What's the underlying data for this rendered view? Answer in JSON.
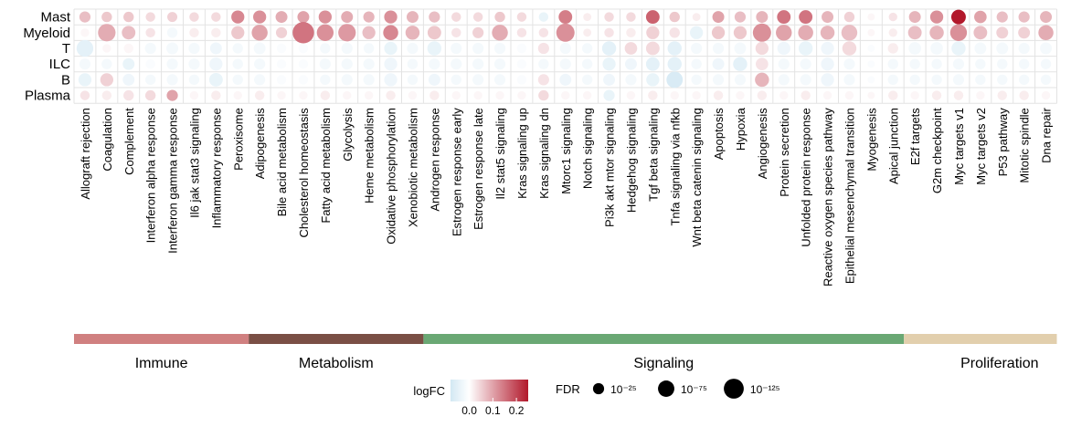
{
  "chart_data": {
    "type": "scatter",
    "subtype": "dot-plot",
    "title": "",
    "xlabel": "",
    "ylabel": "",
    "rows": [
      "Mast",
      "Myeloid",
      "T",
      "ILC",
      "B",
      "Plasma"
    ],
    "columns": [
      "Allograft rejection",
      "Coagulation",
      "Complement",
      "Interferon alpha response",
      "Interferon gamma response",
      "Il6 jak stat3 signaling",
      "Inflammatory response",
      "Peroxisome",
      "Adipogenesis",
      "Bile acid metabolism",
      "Cholesterol homeostasis",
      "Fatty acid metabolism",
      "Glycolysis",
      "Heme metabolism",
      "Oxidative phosphorylation",
      "Xenobiotic metabolism",
      "Androgen response",
      "Estrogen response early",
      "Estrogen response late",
      "Il2 stat5 signaling",
      "Kras signaling up",
      "Kras signaling dn",
      "Mtorc1 signaling",
      "Notch signaling",
      "Pi3k akt mtor signaling",
      "Hedgehog signaling",
      "Tgf beta signaling",
      "Tnfa signaling via nfkb",
      "Wnt beta catenin signaling",
      "Apoptosis",
      "Hypoxia",
      "Angiogenesis",
      "Protein secretion",
      "Unfolded protein response",
      "Reactive oxygen species pathway",
      "Epithelial mesenchymal transition",
      "Myogenesis",
      "Apical junction",
      "E2f targets",
      "G2m checkpoint",
      "Myc targets v1",
      "Myc targets v2",
      "P53 pathway",
      "Mitotic spindle",
      "Dna repair"
    ],
    "categories": [
      {
        "name": "Immune",
        "start": 0,
        "end": 7,
        "color": "#d08080"
      },
      {
        "name": "Metabolism",
        "start": 8,
        "end": 15,
        "color": "#7a4f45"
      },
      {
        "name": "Signaling",
        "start": 16,
        "end": 37,
        "color": "#6aa874"
      },
      {
        "name": "Proliferation",
        "start": 38,
        "end": 44,
        "color": "#e2cfad"
      }
    ],
    "logfc": [
      [
        0.07,
        0.06,
        0.06,
        0.04,
        0.05,
        0.04,
        0.04,
        0.13,
        0.12,
        0.09,
        0.1,
        0.12,
        0.09,
        0.08,
        0.12,
        0.08,
        0.07,
        0.04,
        0.04,
        0.06,
        0.04,
        -0.04,
        0.14,
        0.02,
        0.04,
        0.04,
        0.17,
        0.06,
        0.02,
        0.1,
        0.07,
        0.08,
        0.15,
        0.15,
        0.08,
        0.05,
        0.01,
        0.03,
        0.08,
        0.12,
        0.25,
        0.1,
        0.07,
        0.07,
        0.08
      ],
      [
        0.01,
        0.09,
        0.07,
        0.03,
        -0.02,
        0.02,
        0.02,
        0.06,
        0.1,
        0.05,
        0.15,
        0.12,
        0.11,
        0.07,
        0.13,
        0.08,
        0.06,
        0.03,
        0.05,
        0.09,
        0.03,
        0.03,
        0.12,
        0.02,
        0.03,
        0.02,
        0.05,
        0.03,
        -0.04,
        0.06,
        0.06,
        0.12,
        0.1,
        0.09,
        0.08,
        0.07,
        0.01,
        0.02,
        0.07,
        0.08,
        0.12,
        0.07,
        0.05,
        0.05,
        0.09
      ],
      [
        -0.05,
        0.01,
        0.01,
        -0.02,
        -0.02,
        -0.02,
        -0.03,
        -0.02,
        -0.02,
        -0.01,
        -0.01,
        -0.02,
        -0.02,
        -0.02,
        -0.04,
        -0.02,
        -0.04,
        -0.02,
        -0.02,
        -0.02,
        -0.01,
        0.03,
        -0.02,
        -0.02,
        -0.05,
        0.04,
        0.04,
        -0.05,
        -0.02,
        -0.02,
        -0.02,
        0.04,
        -0.03,
        -0.04,
        -0.03,
        0.04,
        -0.01,
        0.02,
        -0.02,
        -0.02,
        -0.04,
        -0.02,
        -0.02,
        -0.02,
        -0.02
      ],
      [
        -0.02,
        -0.02,
        -0.04,
        -0.01,
        -0.02,
        -0.02,
        -0.03,
        -0.02,
        -0.02,
        -0.01,
        -0.01,
        -0.02,
        -0.02,
        -0.02,
        -0.03,
        -0.02,
        -0.02,
        -0.02,
        -0.02,
        -0.02,
        -0.01,
        -0.02,
        -0.02,
        -0.02,
        -0.04,
        -0.03,
        -0.05,
        -0.05,
        -0.02,
        -0.03,
        -0.05,
        0.03,
        -0.02,
        -0.02,
        -0.03,
        -0.02,
        -0.01,
        -0.02,
        -0.02,
        -0.02,
        -0.02,
        -0.02,
        -0.02,
        -0.02,
        -0.02
      ],
      [
        -0.04,
        0.05,
        -0.03,
        -0.02,
        -0.02,
        -0.02,
        -0.04,
        -0.02,
        -0.02,
        -0.01,
        -0.01,
        -0.02,
        -0.02,
        -0.02,
        -0.03,
        -0.02,
        -0.03,
        -0.02,
        -0.02,
        -0.02,
        -0.01,
        0.03,
        -0.03,
        -0.02,
        -0.03,
        -0.02,
        -0.04,
        -0.07,
        -0.02,
        -0.02,
        -0.02,
        0.08,
        -0.02,
        -0.02,
        -0.03,
        -0.02,
        -0.01,
        -0.02,
        -0.02,
        -0.02,
        -0.02,
        -0.02,
        -0.02,
        -0.02,
        -0.02
      ],
      [
        0.03,
        0.02,
        0.03,
        0.04,
        0.1,
        0.01,
        0.02,
        0.01,
        0.02,
        0.01,
        0.01,
        0.02,
        0.01,
        0.01,
        0.02,
        0.01,
        0.02,
        0.01,
        0.01,
        0.01,
        0.01,
        0.04,
        0.01,
        0.01,
        -0.04,
        0.01,
        0.02,
        0.01,
        0.01,
        0.02,
        0.01,
        0.02,
        0.01,
        0.02,
        0.01,
        0.01,
        0.01,
        0.02,
        0.01,
        0.02,
        0.02,
        0.01,
        0.02,
        0.02,
        0.01
      ]
    ],
    "fdr_neglog10": [
      [
        25,
        20,
        20,
        15,
        18,
        15,
        15,
        40,
        40,
        30,
        30,
        40,
        30,
        25,
        40,
        30,
        25,
        15,
        15,
        20,
        15,
        15,
        45,
        8,
        15,
        15,
        45,
        20,
        8,
        30,
        25,
        30,
        45,
        45,
        30,
        20,
        5,
        10,
        30,
        40,
        55,
        35,
        25,
        25,
        30
      ],
      [
        10,
        90,
        45,
        15,
        20,
        15,
        15,
        40,
        70,
        25,
        150,
        80,
        90,
        40,
        60,
        50,
        45,
        15,
        25,
        70,
        15,
        15,
        100,
        8,
        15,
        15,
        40,
        20,
        40,
        40,
        40,
        100,
        70,
        60,
        50,
        70,
        5,
        10,
        45,
        50,
        80,
        45,
        30,
        30,
        60
      ],
      [
        80,
        10,
        15,
        25,
        30,
        25,
        30,
        20,
        30,
        15,
        15,
        20,
        25,
        20,
        40,
        25,
        50,
        25,
        25,
        25,
        15,
        25,
        25,
        20,
        50,
        35,
        45,
        50,
        25,
        25,
        30,
        40,
        40,
        50,
        40,
        50,
        5,
        20,
        35,
        35,
        50,
        30,
        30,
        25,
        30
      ],
      [
        25,
        20,
        30,
        15,
        25,
        25,
        40,
        20,
        25,
        15,
        15,
        25,
        25,
        25,
        40,
        20,
        25,
        25,
        25,
        25,
        15,
        20,
        25,
        20,
        40,
        30,
        45,
        50,
        20,
        30,
        50,
        35,
        25,
        25,
        40,
        25,
        5,
        20,
        20,
        20,
        25,
        20,
        20,
        20,
        20
      ],
      [
        40,
        40,
        30,
        20,
        25,
        20,
        45,
        20,
        25,
        15,
        15,
        20,
        25,
        25,
        40,
        20,
        30,
        20,
        25,
        25,
        15,
        25,
        30,
        20,
        30,
        25,
        40,
        75,
        20,
        25,
        25,
        50,
        25,
        25,
        40,
        25,
        5,
        20,
        20,
        20,
        25,
        20,
        20,
        20,
        20
      ],
      [
        15,
        15,
        20,
        20,
        25,
        10,
        15,
        10,
        15,
        10,
        10,
        15,
        10,
        10,
        15,
        10,
        15,
        10,
        10,
        10,
        10,
        20,
        10,
        10,
        25,
        10,
        15,
        10,
        10,
        15,
        10,
        15,
        10,
        15,
        10,
        10,
        5,
        15,
        10,
        15,
        15,
        10,
        15,
        15,
        10
      ]
    ],
    "legend_color": {
      "title": "logFC",
      "ticks": [
        0.0,
        0.1,
        0.2
      ],
      "tick_labels": [
        "0.0",
        "0.1",
        "0.2"
      ],
      "colors": {
        "low": "#d3e8f3",
        "mid": "#ffffff",
        "high": "#b2182b"
      },
      "range": [
        -0.08,
        0.25
      ]
    },
    "legend_size": {
      "title": "FDR",
      "labels": [
        "10⁻²⁵",
        "10⁻⁷⁵",
        "10⁻¹²⁵"
      ],
      "values": [
        25,
        75,
        125
      ]
    },
    "grid": true
  }
}
